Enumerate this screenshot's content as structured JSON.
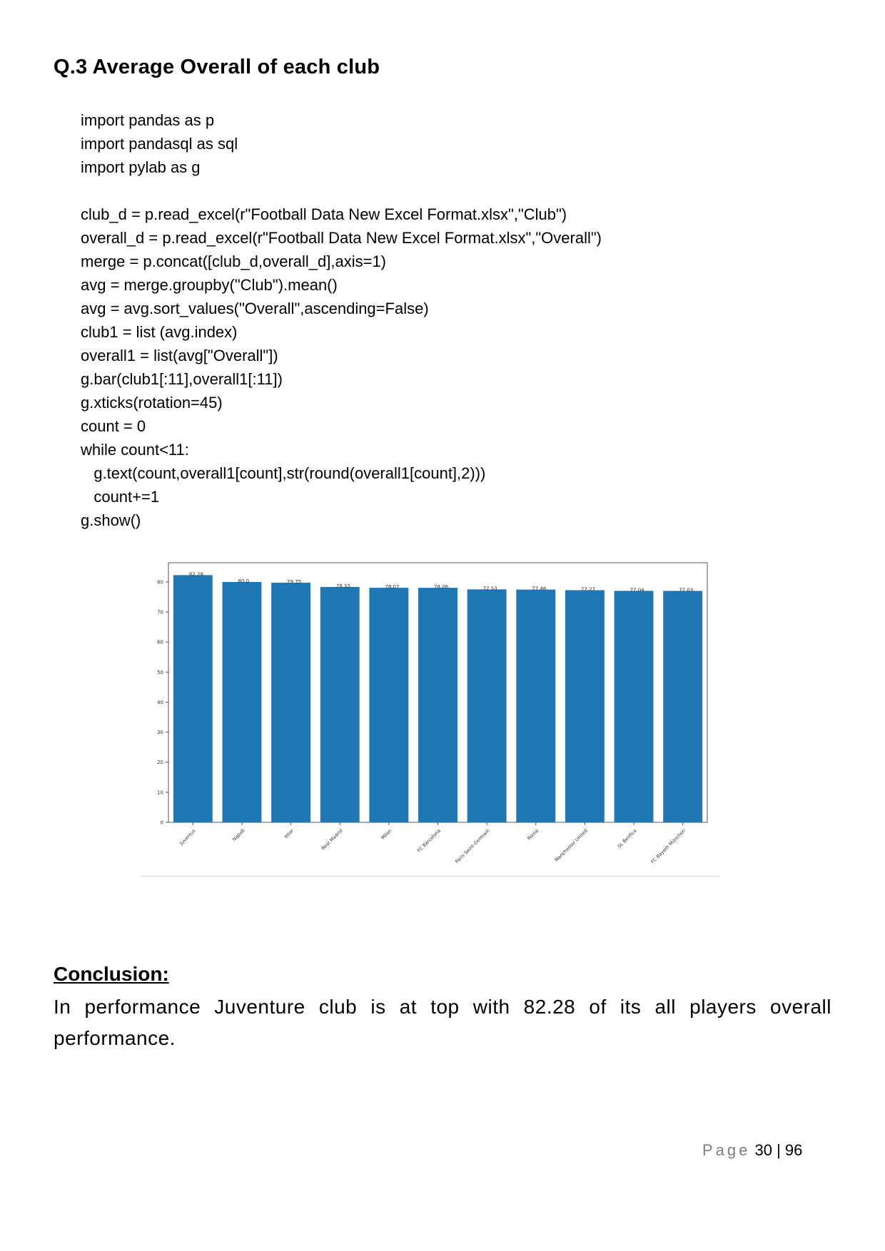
{
  "heading": "Q.3 Average Overall of each club",
  "code_lines": [
    "import pandas as p",
    "import pandasql as sql",
    "import pylab as g",
    "",
    "club_d = p.read_excel(r\"Football Data New Excel Format.xlsx\",\"Club\")",
    "overall_d = p.read_excel(r\"Football Data New Excel Format.xlsx\",\"Overall\")",
    "merge = p.concat([club_d,overall_d],axis=1)",
    "avg = merge.groupby(\"Club\").mean()",
    "avg = avg.sort_values(\"Overall\",ascending=False)",
    "club1 = list (avg.index)",
    "overall1 = list(avg[\"Overall\"])",
    "g.bar(club1[:11],overall1[:11])",
    "g.xticks(rotation=45)",
    "count = 0",
    "while count<11:",
    "   g.text(count,overall1[count],str(round(overall1[count],2)))",
    "   count+=1",
    "g.show()"
  ],
  "chart_data": {
    "type": "bar",
    "categories": [
      "Juventus",
      "Napoli",
      "Inter",
      "Real Madrid",
      "Milan",
      "FC Barcelona",
      "Paris Saint-Germain",
      "Roma",
      "Manchester United",
      "SL Benfica",
      "FC Bayern München"
    ],
    "values": [
      82.28,
      80.0,
      79.75,
      78.33,
      78.07,
      78.06,
      77.53,
      77.46,
      77.27,
      77.04,
      77.03
    ],
    "data_labels": [
      "82.28",
      "80.0",
      "79.75",
      "78.33",
      "78.07",
      "78.06",
      "77.53",
      "77.46",
      "77.27",
      "77.04",
      "77.03"
    ],
    "yticks": [
      0,
      10,
      20,
      30,
      40,
      50,
      60,
      70,
      80
    ],
    "ylim": [
      0,
      86.4
    ],
    "bar_color": "#1f77b4",
    "xtick_rotation": 45,
    "title": "",
    "xlabel": "",
    "ylabel": "",
    "grid": false
  },
  "conclusion": {
    "title": "Conclusion:",
    "body": "In performance Juventure club is at top with 82.28 of its all players overall performance."
  },
  "footer": {
    "page_word": "Page",
    "page_num": "30 | 96"
  }
}
